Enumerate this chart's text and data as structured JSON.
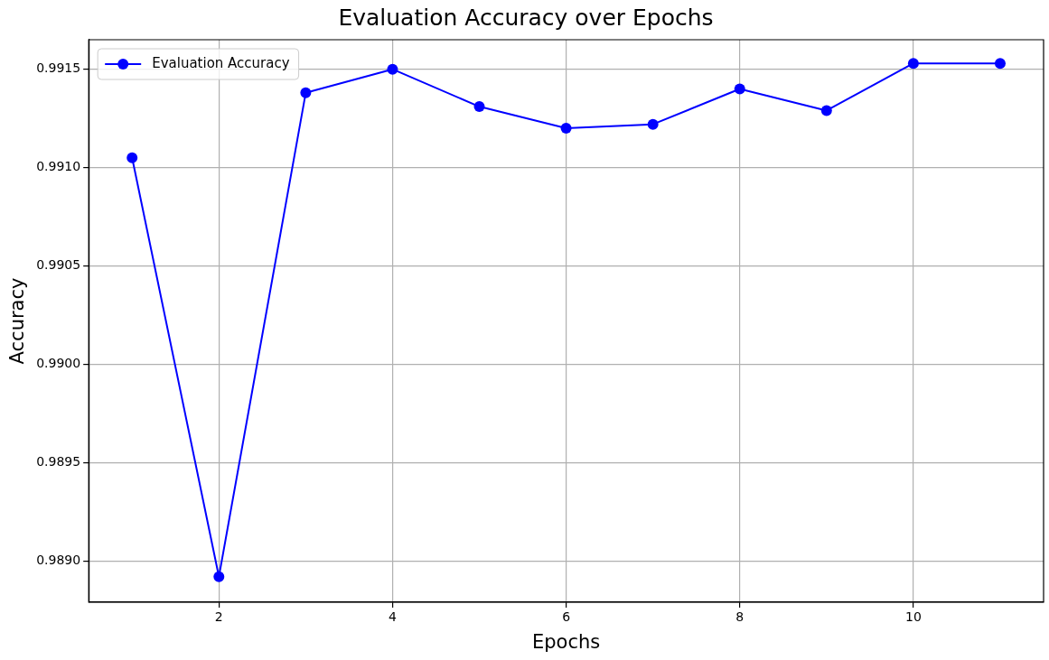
{
  "chart_data": {
    "type": "line",
    "title": "Evaluation Accuracy over Epochs",
    "xlabel": "Epochs",
    "ylabel": "Accuracy",
    "x": [
      1,
      2,
      3,
      4,
      5,
      6,
      7,
      8,
      9,
      10,
      11
    ],
    "series": [
      {
        "name": "Evaluation Accuracy",
        "color": "#0000ff",
        "values": [
          0.99105,
          0.98892,
          0.99138,
          0.9915,
          0.99131,
          0.9912,
          0.99122,
          0.9914,
          0.99129,
          0.99153,
          0.99153
        ]
      }
    ],
    "xlim": [
      0.5,
      11.5
    ],
    "xticks": [
      2,
      4,
      6,
      8,
      10
    ],
    "ylim": [
      0.98879,
      0.99165
    ],
    "yticks": [
      {
        "value": 0.989,
        "label": "0.9890"
      },
      {
        "value": 0.9895,
        "label": "0.9895"
      },
      {
        "value": 0.99,
        "label": "0.9900"
      },
      {
        "value": 0.9905,
        "label": "0.9905"
      },
      {
        "value": 0.991,
        "label": "0.9910"
      },
      {
        "value": 0.9915,
        "label": "0.9915"
      }
    ],
    "grid": true,
    "legend": "top left",
    "marker": "circle",
    "line_style": "solid"
  }
}
